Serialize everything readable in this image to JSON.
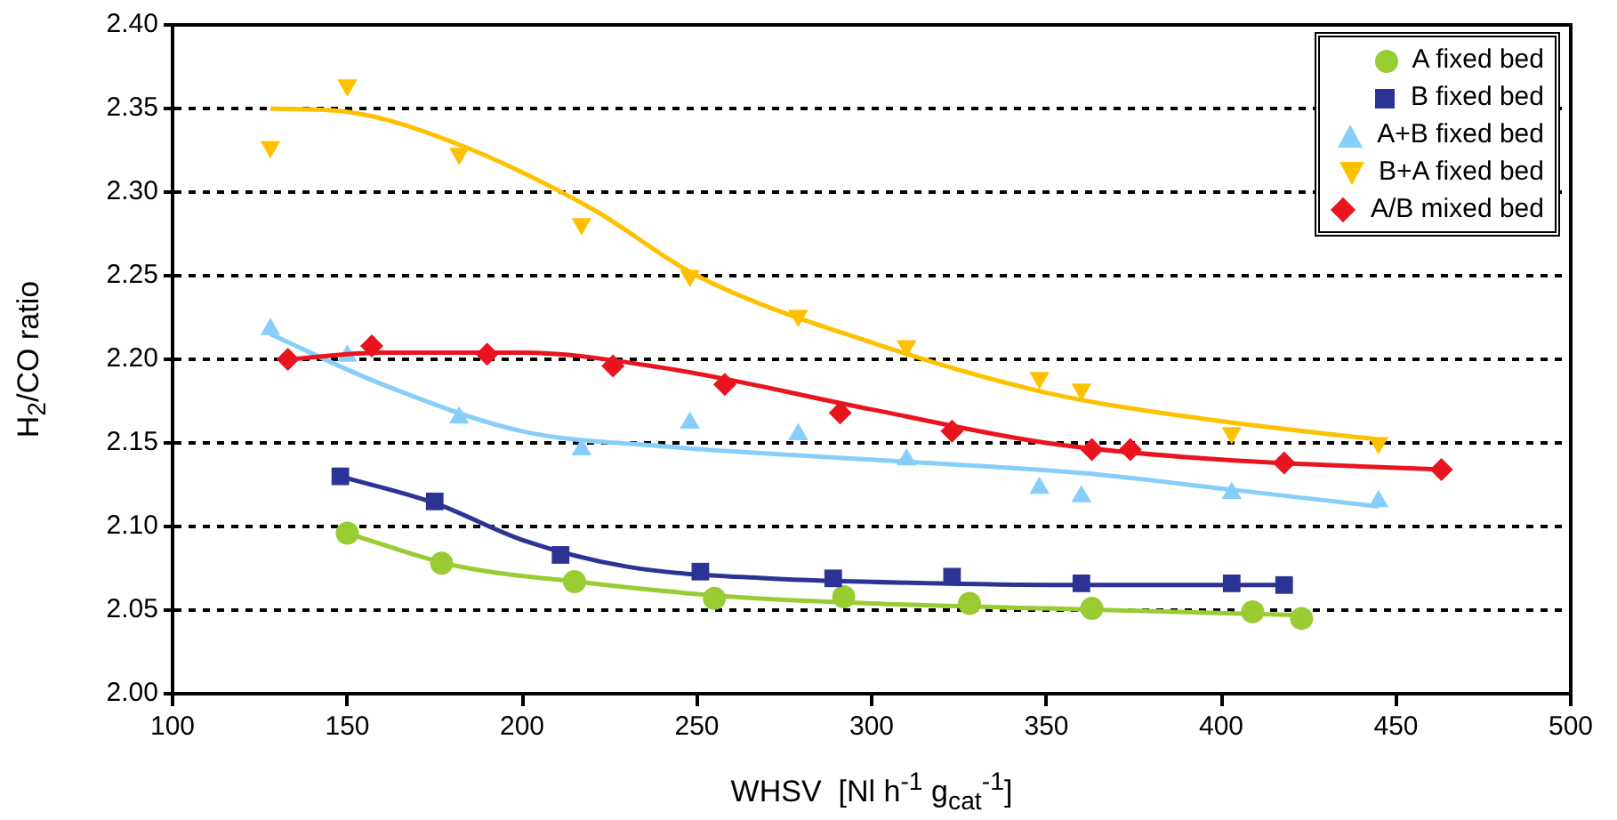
{
  "chart_data": {
    "type": "scatter",
    "xlabel": "WHSV  [Nl h$^{-1}$ g$_{cat}$$^{-1}$]",
    "ylabel": "H$_{2}$/CO ratio",
    "xlim": [
      100,
      500
    ],
    "xticks": [
      100,
      150,
      200,
      250,
      300,
      350,
      400,
      450,
      500
    ],
    "ylim": [
      2.0,
      2.4
    ],
    "yticks": [
      {
        "value": 2.0,
        "label": "2.00"
      },
      {
        "value": 2.05,
        "label": "2.05"
      },
      {
        "value": 2.1,
        "label": "2.10"
      },
      {
        "value": 2.15,
        "label": "2.15"
      },
      {
        "value": 2.2,
        "label": "2.20"
      },
      {
        "value": 2.25,
        "label": "2.25"
      },
      {
        "value": 2.3,
        "label": "2.30"
      },
      {
        "value": 2.35,
        "label": "2.35"
      },
      {
        "value": 2.4,
        "label": "2.40"
      }
    ],
    "grid": "y",
    "legend": "top right",
    "series": [
      {
        "name": "A fixed bed",
        "type": "scatter",
        "marker": "circle",
        "color": "#99cc33",
        "x": [
          150,
          177,
          215,
          255,
          292,
          328,
          363,
          409,
          423
        ],
        "values": [
          2.096,
          2.078,
          2.067,
          2.057,
          2.058,
          2.054,
          2.051,
          2.049,
          2.045
        ]
      },
      {
        "name": "B fixed bed",
        "type": "scatter",
        "marker": "square",
        "color": "#2b3494",
        "x": [
          148,
          175,
          211,
          251,
          289,
          323,
          360,
          403,
          418
        ],
        "values": [
          2.13,
          2.115,
          2.083,
          2.073,
          2.069,
          2.07,
          2.066,
          2.066,
          2.065
        ]
      },
      {
        "name": "A+B fixed bed",
        "type": "scatter",
        "marker": "triangle",
        "color": "#87cefa",
        "x": [
          128,
          150,
          182,
          217,
          248,
          279,
          310,
          348,
          360,
          403,
          445
        ],
        "values": [
          2.218,
          2.202,
          2.165,
          2.146,
          2.162,
          2.155,
          2.14,
          2.123,
          2.118,
          2.12,
          2.115
        ]
      },
      {
        "name": "B+A fixed bed",
        "type": "scatter",
        "marker": "triangle-down",
        "color": "#ffc000",
        "x": [
          128,
          150,
          182,
          217,
          248,
          279,
          310,
          348,
          360,
          403,
          445
        ],
        "values": [
          2.327,
          2.364,
          2.323,
          2.281,
          2.25,
          2.226,
          2.208,
          2.189,
          2.182,
          2.156,
          2.15
        ]
      },
      {
        "name": "A/B mixed bed",
        "type": "scatter",
        "marker": "diamond",
        "color": "#e8141e",
        "x": [
          133,
          157,
          190,
          226,
          258,
          291,
          323,
          363,
          374,
          418,
          463
        ],
        "values": [
          2.2,
          2.208,
          2.203,
          2.196,
          2.185,
          2.168,
          2.157,
          2.146,
          2.146,
          2.138,
          2.134
        ]
      },
      {
        "type": "line",
        "marker": "none",
        "color": "#99cc33",
        "x": [
          150,
          180,
          220,
          260,
          300,
          350,
          423
        ],
        "values": [
          2.096,
          2.077,
          2.066,
          2.058,
          2.054,
          2.051,
          2.047
        ]
      },
      {
        "type": "line",
        "marker": "none",
        "color": "#2b3494",
        "x": [
          148,
          175,
          200,
          230,
          270,
          320,
          360,
          418
        ],
        "values": [
          2.13,
          2.114,
          2.092,
          2.076,
          2.069,
          2.066,
          2.065,
          2.065
        ]
      },
      {
        "type": "line",
        "marker": "none",
        "color": "#87cefa",
        "x": [
          128,
          160,
          200,
          240,
          300,
          360,
          403,
          445
        ],
        "values": [
          2.215,
          2.185,
          2.157,
          2.148,
          2.14,
          2.132,
          2.122,
          2.112
        ]
      },
      {
        "type": "line",
        "marker": "none",
        "color": "#ffc000",
        "x": [
          128,
          150,
          180,
          220,
          250,
          300,
          350,
          400,
          445
        ],
        "values": [
          2.35,
          2.348,
          2.33,
          2.29,
          2.25,
          2.21,
          2.18,
          2.163,
          2.152
        ]
      },
      {
        "type": "line",
        "marker": "none",
        "color": "#e8141e",
        "x": [
          133,
          160,
          200,
          240,
          300,
          350,
          400,
          463
        ],
        "values": [
          2.2,
          2.204,
          2.204,
          2.195,
          2.17,
          2.15,
          2.14,
          2.134
        ]
      }
    ]
  }
}
